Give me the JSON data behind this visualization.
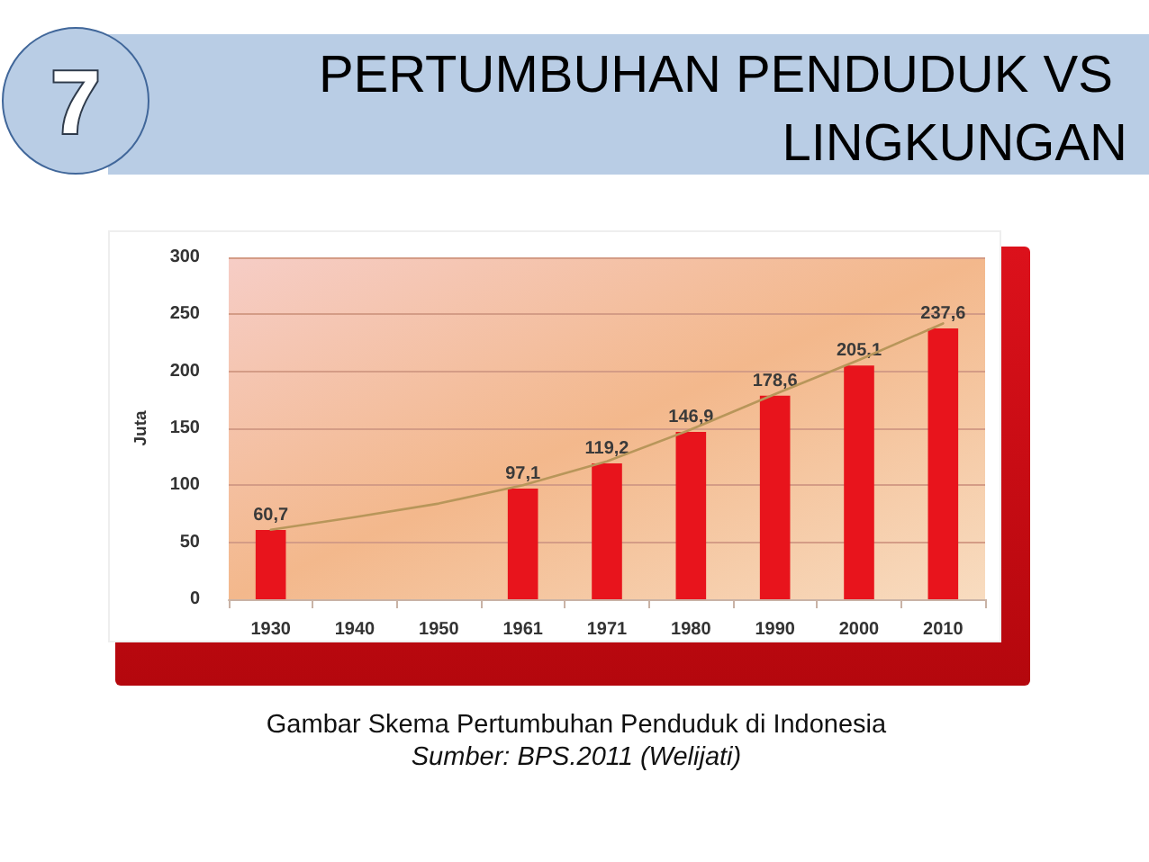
{
  "chart_data": {
    "type": "bar",
    "title": "PERTUMBUHAN PENDUDUK VS LINGKUNGAN",
    "ylabel": "Juta",
    "annotations": [
      "7",
      "Gambar Skema Pertumbuhan Penduduk di Indonesia",
      "Sumber: BPS.2011 (Welijati)"
    ],
    "categories": [
      "1930",
      "1940",
      "1950",
      "1961",
      "1971",
      "1980",
      "1990",
      "2000",
      "2010"
    ],
    "series": [
      {
        "color": "#e8141c",
        "values": [
          60.7,
          null,
          null,
          97.1,
          119.2,
          146.9,
          178.6,
          205.1,
          237.6
        ],
        "value_labels": [
          "60,7",
          null,
          null,
          "97,1",
          "119,2",
          "146,9",
          "178,6",
          "205,1",
          "237,6"
        ]
      },
      {
        "type": "line",
        "color": "#b8965a",
        "values": [
          61,
          72,
          84,
          100,
          121,
          149,
          180,
          210,
          242
        ]
      }
    ],
    "ylim": [
      0,
      300
    ],
    "yticks": [
      0,
      50,
      100,
      150,
      200,
      250,
      300
    ],
    "grid": "y"
  }
}
